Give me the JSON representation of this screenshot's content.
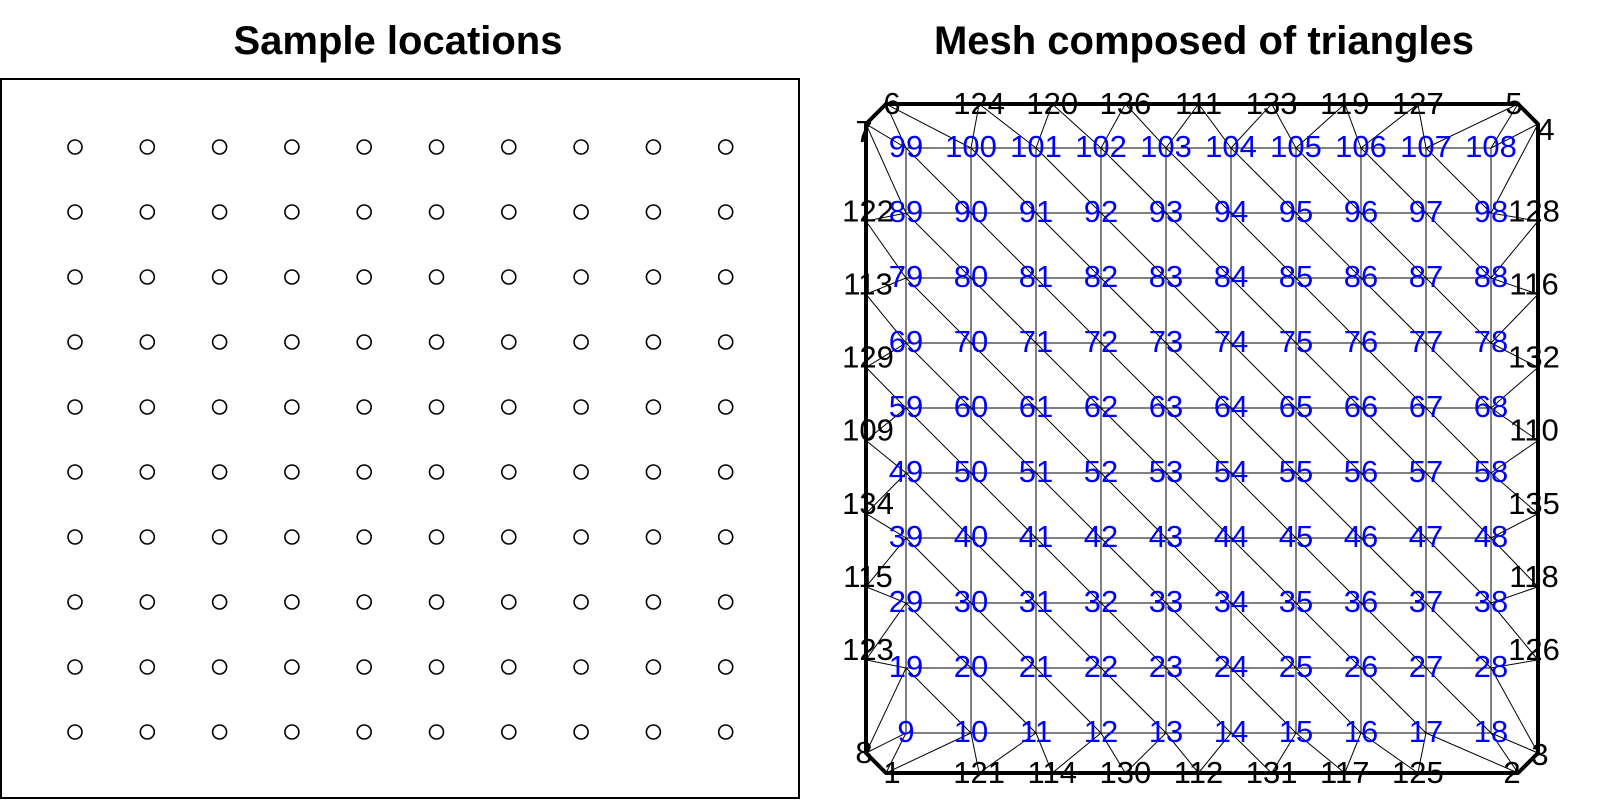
{
  "left_panel": {
    "title": "Sample locations",
    "grid": {
      "cols": 10,
      "rows": 10
    }
  },
  "right_panel": {
    "title": "Mesh composed of triangles",
    "interior_labels": {
      "rows_top_to_bottom": [
        [
          "99",
          "100",
          "101",
          "102",
          "103",
          "104",
          "105",
          "106",
          "107",
          "108"
        ],
        [
          "89",
          "90",
          "91",
          "92",
          "93",
          "94",
          "95",
          "96",
          "97",
          "98"
        ],
        [
          "79",
          "80",
          "81",
          "82",
          "83",
          "84",
          "85",
          "86",
          "87",
          "88"
        ],
        [
          "69",
          "70",
          "71",
          "72",
          "73",
          "74",
          "75",
          "76",
          "77",
          "78"
        ],
        [
          "59",
          "60",
          "61",
          "62",
          "63",
          "64",
          "65",
          "66",
          "67",
          "68"
        ],
        [
          "49",
          "50",
          "51",
          "52",
          "53",
          "54",
          "55",
          "56",
          "57",
          "58"
        ],
        [
          "39",
          "40",
          "41",
          "42",
          "43",
          "44",
          "45",
          "46",
          "47",
          "48"
        ],
        [
          "29",
          "30",
          "31",
          "32",
          "33",
          "34",
          "35",
          "36",
          "37",
          "38"
        ],
        [
          "19",
          "20",
          "21",
          "22",
          "23",
          "24",
          "25",
          "26",
          "27",
          "28"
        ],
        [
          "9",
          "10",
          "11",
          "12",
          "13",
          "14",
          "15",
          "16",
          "17",
          "18"
        ]
      ],
      "color": "#0000ff"
    },
    "boundary_labels": {
      "corners": {
        "top_left": "6",
        "top_right": "5",
        "left_top": "7",
        "right_top": "4",
        "left_bottom": "8",
        "right_bottom": "3",
        "bottom_left": "1",
        "bottom_right": "2"
      },
      "top": [
        "124",
        "120",
        "136",
        "111",
        "133",
        "119",
        "127"
      ],
      "bottom": [
        "121",
        "114",
        "130",
        "112",
        "131",
        "117",
        "125"
      ],
      "left": [
        "122",
        "113",
        "129",
        "109",
        "134",
        "115",
        "123"
      ],
      "right": [
        "128",
        "116",
        "132",
        "110",
        "135",
        "118",
        "126"
      ],
      "color": "#000000"
    }
  }
}
